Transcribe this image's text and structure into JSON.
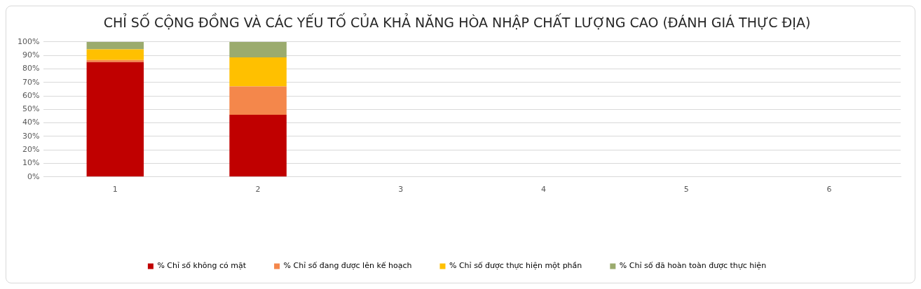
{
  "chart_data": {
    "type": "bar",
    "title": "CHỈ SỐ CỘNG ĐỒNG VÀ CÁC YẾU TỐ CỦA KHẢ NĂNG HÒA NHẬP CHẤT LƯỢNG CAO (ĐÁNH GIÁ THỰC ĐỊA)",
    "categories": [
      "1",
      "2",
      "3",
      "4",
      "5",
      "6"
    ],
    "stacked": true,
    "series": [
      {
        "name": "% Chỉ số không có mặt",
        "color": "#c00000",
        "values": [
          85,
          46,
          null,
          null,
          null,
          null
        ]
      },
      {
        "name": "% Chỉ số đang được lên kế hoạch",
        "color": "#f4874b",
        "values": [
          1.5,
          21,
          null,
          null,
          null,
          null
        ]
      },
      {
        "name": "% Chỉ số được thực hiện một phần",
        "color": "#ffc000",
        "values": [
          8,
          21.5,
          null,
          null,
          null,
          null
        ]
      },
      {
        "name": "% Chỉ số đã hoàn toàn được thực hiện",
        "color": "#9bab6e",
        "values": [
          5.5,
          11.5,
          null,
          null,
          null,
          null
        ]
      }
    ],
    "ylim": [
      0,
      100
    ],
    "yticks": [
      {
        "value": 0,
        "label": "0%"
      },
      {
        "value": 10,
        "label": "10%"
      },
      {
        "value": 20,
        "label": "20%"
      },
      {
        "value": 30,
        "label": "30%"
      },
      {
        "value": 40,
        "label": "40%"
      },
      {
        "value": 50,
        "label": "50%"
      },
      {
        "value": 60,
        "label": "60%"
      },
      {
        "value": 70,
        "label": "70%"
      },
      {
        "value": 80,
        "label": "80%"
      },
      {
        "value": 90,
        "label": "90%"
      },
      {
        "value": 100,
        "label": "100%"
      }
    ],
    "grid": "y",
    "legend": "bottom"
  }
}
